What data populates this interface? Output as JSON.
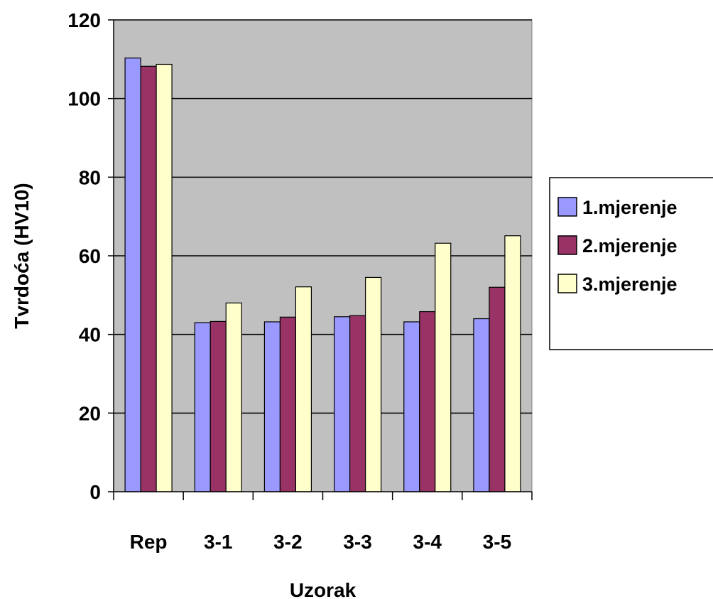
{
  "chart_data": {
    "type": "bar",
    "title": "",
    "xlabel": "Uzorak",
    "ylabel": "Tvrdoća (HV10)",
    "ylim": [
      0,
      120
    ],
    "y_ticks": [
      "0",
      "20",
      "40",
      "60",
      "80",
      "100",
      "120"
    ],
    "categories": [
      "Rep",
      "3-1",
      "3-2",
      "3-3",
      "3-4",
      "3-5"
    ],
    "series": [
      {
        "name": "1.mjerenje",
        "color": "#9999ff",
        "values": [
          110.3,
          43.0,
          43.2,
          44.5,
          43.2,
          44.0
        ]
      },
      {
        "name": "2.mjerenje",
        "color": "#993366",
        "values": [
          108.2,
          43.3,
          44.4,
          44.8,
          45.8,
          52.0
        ]
      },
      {
        "name": "3.mjerenje",
        "color": "#ffffcc",
        "values": [
          108.7,
          48.0,
          52.1,
          54.5,
          63.2,
          65.1
        ]
      }
    ],
    "grid": true,
    "plot_background": "#c0c0c0",
    "legend_position": "right"
  }
}
